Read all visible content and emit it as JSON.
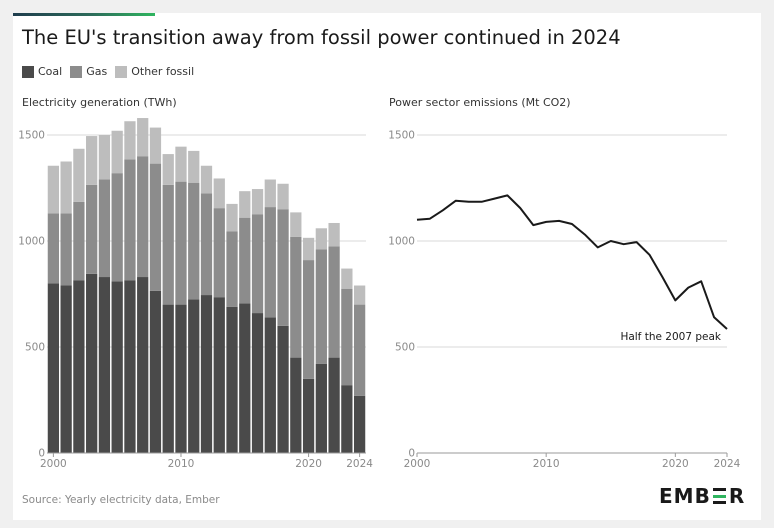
{
  "title": "The EU's transition away from fossil power continued in 2024",
  "legend": [
    {
      "label": "Coal",
      "color": "#4a4a4a"
    },
    {
      "label": "Gas",
      "color": "#8c8c8c"
    },
    {
      "label": "Other fossil",
      "color": "#bdbdbd"
    }
  ],
  "source": "Source: Yearly electricity data, Ember",
  "logo_text": "EMBER",
  "colors": {
    "coal": "#4a4a4a",
    "gas": "#8c8c8c",
    "other": "#bdbdbd",
    "line": "#1a1a1a",
    "grid": "#d9d9d9",
    "accent": "#2fb55f"
  },
  "chart_data": [
    {
      "type": "bar",
      "stacked": true,
      "title": "Electricity generation (TWh)",
      "x": [
        2000,
        2001,
        2002,
        2003,
        2004,
        2005,
        2006,
        2007,
        2008,
        2009,
        2010,
        2011,
        2012,
        2013,
        2014,
        2015,
        2016,
        2017,
        2018,
        2019,
        2020,
        2021,
        2022,
        2023,
        2024
      ],
      "series": [
        {
          "name": "Coal",
          "values": [
            800,
            790,
            815,
            845,
            830,
            810,
            815,
            830,
            765,
            700,
            700,
            725,
            745,
            735,
            690,
            705,
            660,
            640,
            600,
            450,
            350,
            420,
            450,
            320,
            270
          ]
        },
        {
          "name": "Gas",
          "values": [
            330,
            340,
            370,
            420,
            460,
            510,
            570,
            570,
            600,
            565,
            580,
            550,
            480,
            420,
            355,
            405,
            465,
            520,
            550,
            570,
            560,
            540,
            525,
            455,
            430
          ]
        },
        {
          "name": "Other fossil",
          "values": [
            225,
            245,
            250,
            230,
            210,
            200,
            180,
            180,
            170,
            145,
            165,
            150,
            130,
            140,
            130,
            125,
            120,
            130,
            120,
            115,
            105,
            100,
            110,
            95,
            90
          ]
        }
      ],
      "yticks": [
        0,
        500,
        1000,
        1500
      ],
      "xticks": [
        2000,
        2010,
        2020,
        2024
      ],
      "ylim": [
        0,
        1600
      ],
      "grid": true
    },
    {
      "type": "line",
      "title": "Power sector emissions (Mt CO2)",
      "x": [
        2000,
        2001,
        2002,
        2003,
        2004,
        2005,
        2006,
        2007,
        2008,
        2009,
        2010,
        2011,
        2012,
        2013,
        2014,
        2015,
        2016,
        2017,
        2018,
        2019,
        2020,
        2021,
        2022,
        2023,
        2024
      ],
      "values": [
        1100,
        1105,
        1145,
        1190,
        1185,
        1185,
        1200,
        1215,
        1155,
        1075,
        1090,
        1095,
        1080,
        1030,
        970,
        1000,
        985,
        995,
        935,
        830,
        720,
        780,
        810,
        640,
        585
      ],
      "yticks": [
        0,
        500,
        1000,
        1500
      ],
      "xticks": [
        2000,
        2010,
        2020,
        2024
      ],
      "ylim": [
        0,
        1600
      ],
      "grid": true,
      "annotation": "Half the 2007 peak"
    }
  ]
}
